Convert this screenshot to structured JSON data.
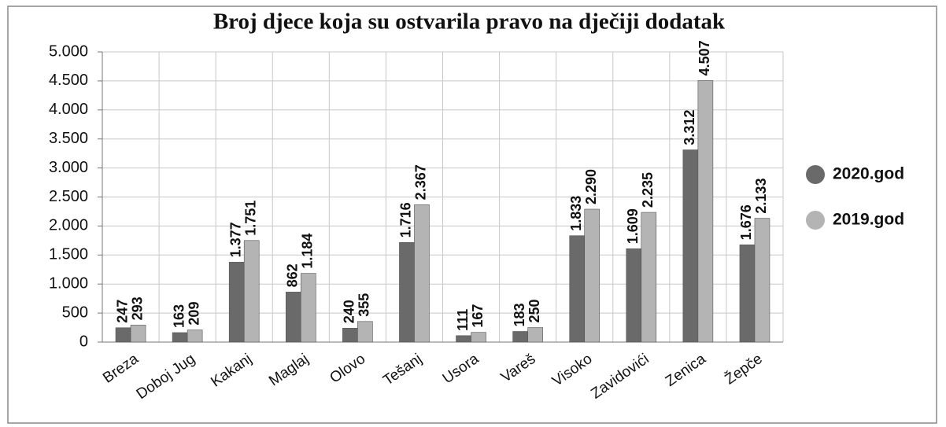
{
  "chart_data": {
    "type": "bar",
    "title": "Broj djece koja su ostvarila pravo na dječiji dodatak",
    "categories": [
      "Breza",
      "Doboj Jug",
      "Kakanj",
      "Maglaj",
      "Olovo",
      "Tešanj",
      "Usora",
      "Vareš",
      "Visoko",
      "Zavidovići",
      "Zenica",
      "Žepče"
    ],
    "series": [
      {
        "name": "2020.god",
        "color": "#6a6a6a",
        "values": [
          247,
          163,
          1377,
          862,
          240,
          1716,
          111,
          183,
          1833,
          1609,
          3312,
          1676
        ],
        "value_labels": [
          "247",
          "163",
          "1.377",
          "862",
          "240",
          "1.716",
          "111",
          "183",
          "1.833",
          "1.609",
          "3.312",
          "1.676"
        ]
      },
      {
        "name": "2019.god",
        "color": "#b4b4b4",
        "values": [
          293,
          209,
          1751,
          1184,
          355,
          2367,
          167,
          250,
          2290,
          2235,
          4507,
          2133
        ],
        "value_labels": [
          "293",
          "209",
          "1.751",
          "1.184",
          "355",
          "2.367",
          "167",
          "250",
          "2.290",
          "2.235",
          "4.507",
          "2.133"
        ]
      }
    ],
    "ylim": [
      0,
      5000
    ],
    "yticks": [
      0,
      500,
      {
        "value": 1000,
        "label": "1.000"
      },
      {
        "value": 1500,
        "label": "1.500"
      },
      {
        "value": 2000,
        "label": "2.000"
      },
      {
        "value": 2500,
        "label": "2.500"
      },
      {
        "value": 3000,
        "label": "3.000"
      },
      {
        "value": 3500,
        "label": "3.500"
      },
      {
        "value": 4000,
        "label": "4.000"
      },
      {
        "value": 4500,
        "label": "4.500"
      },
      {
        "value": 5000,
        "label": "5.000"
      }
    ],
    "grid": true,
    "legend": "right"
  }
}
